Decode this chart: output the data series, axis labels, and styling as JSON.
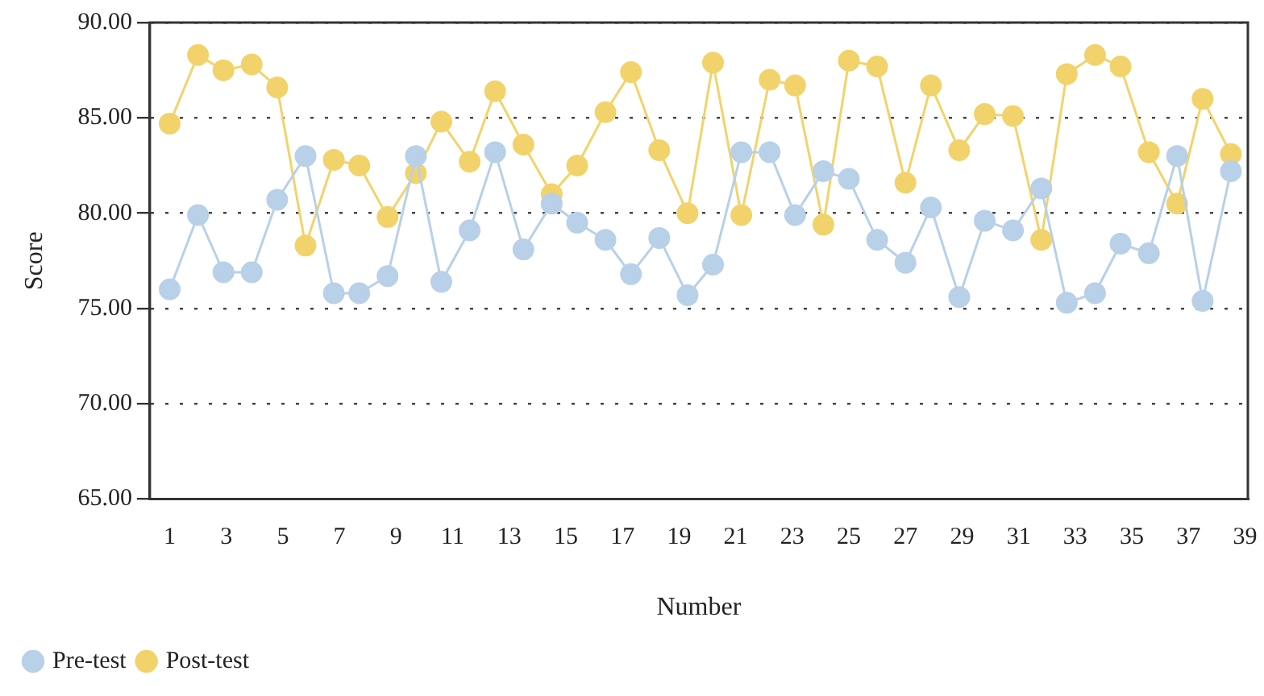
{
  "chart_data": {
    "type": "line",
    "xlabel": "Number",
    "ylabel": "Score",
    "xlim": [
      0.3,
      39.1
    ],
    "xticks": [
      1,
      3,
      5,
      7,
      9,
      11,
      13,
      15,
      17,
      19,
      21,
      23,
      25,
      27,
      29,
      31,
      33,
      35,
      37,
      39
    ],
    "ylim": [
      65,
      90
    ],
    "yticks": [
      {
        "value": 65,
        "label": "65.00"
      },
      {
        "value": 70,
        "label": "70.00"
      },
      {
        "value": 75,
        "label": "75.00"
      },
      {
        "value": 80,
        "label": "80.00"
      },
      {
        "value": 85,
        "label": "85.00"
      },
      {
        "value": 90,
        "label": "90.00"
      }
    ],
    "x": [
      1.0,
      2.0,
      2.9,
      3.9,
      4.8,
      5.8,
      6.8,
      7.7,
      8.7,
      9.7,
      10.6,
      11.6,
      12.5,
      13.5,
      14.5,
      15.4,
      16.4,
      17.3,
      18.3,
      19.3,
      20.2,
      21.2,
      22.2,
      23.1,
      24.1,
      25.0,
      26.0,
      27.0,
      27.9,
      28.9,
      29.8,
      30.8,
      31.8,
      32.7,
      33.7,
      34.6,
      35.6,
      36.6,
      37.5,
      38.5
    ],
    "series": [
      {
        "name": "Pre-test",
        "color": "#b8d0e8",
        "values": [
          76.0,
          79.9,
          76.9,
          76.9,
          80.7,
          83.0,
          75.8,
          75.8,
          76.7,
          83.0,
          76.4,
          79.1,
          83.2,
          78.1,
          80.5,
          79.5,
          78.6,
          76.8,
          78.7,
          75.7,
          77.3,
          83.2,
          83.2,
          79.9,
          82.2,
          81.8,
          78.6,
          77.4,
          80.3,
          75.6,
          79.6,
          79.1,
          81.3,
          75.3,
          75.8,
          78.4,
          77.9,
          83.0,
          75.4,
          82.2
        ]
      },
      {
        "name": "Post-test",
        "color": "#f2d36b",
        "values": [
          84.7,
          88.3,
          87.5,
          87.8,
          86.6,
          78.3,
          82.8,
          82.5,
          79.8,
          82.1,
          84.8,
          82.7,
          86.4,
          83.6,
          81.0,
          82.5,
          85.3,
          87.4,
          83.3,
          80.0,
          87.9,
          79.9,
          87.0,
          86.7,
          79.4,
          88.0,
          87.7,
          81.6,
          86.7,
          83.3,
          85.2,
          85.1,
          78.6,
          87.3,
          88.3,
          87.7,
          83.2,
          80.5,
          86.0,
          83.1
        ]
      }
    ],
    "grid": "y",
    "legend": "bottom left",
    "marker": "circle",
    "line_style": "solid"
  }
}
